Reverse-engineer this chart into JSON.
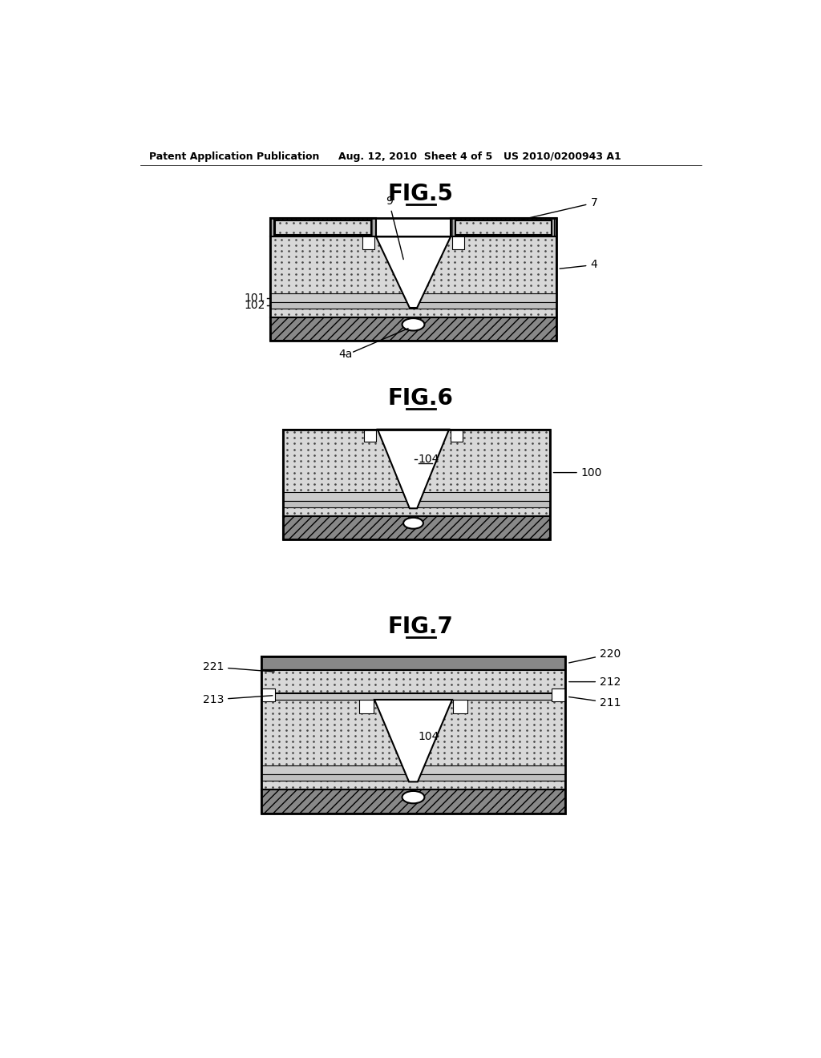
{
  "bg_color": "#ffffff",
  "header_left": "Patent Application Publication",
  "header_mid": "Aug. 12, 2010  Sheet 4 of 5",
  "header_right": "US 2010/0200943 A1",
  "fig5_title": "FIG.5",
  "fig6_title": "FIG.6",
  "fig7_title": "FIG.7",
  "black": "#000000",
  "white": "#ffffff",
  "dot_bg": "#d8d8d8",
  "hatch_fc": "#888888",
  "stripe_fc": "#aaaaaa",
  "label_fontsize": 10,
  "title_fontsize": 18
}
